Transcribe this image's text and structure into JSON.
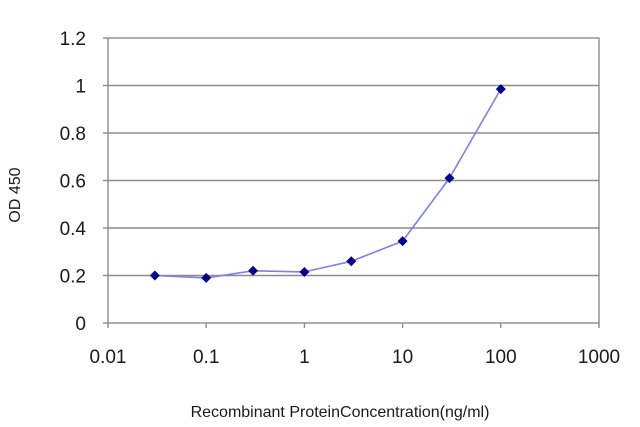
{
  "chart_data": {
    "type": "line",
    "title": "",
    "xlabel": "Recombinant ProteinConcentration(ng/ml)",
    "ylabel": "OD 450",
    "x_scale": "log",
    "xlim": [
      0.01,
      1000
    ],
    "ylim": [
      0,
      1.2
    ],
    "x_ticks": [
      0.01,
      0.1,
      1,
      10,
      100,
      1000
    ],
    "x_tick_labels": [
      "0.01",
      "0.1",
      "1",
      "10",
      "100",
      "1000"
    ],
    "y_ticks": [
      0,
      0.2,
      0.4,
      0.6,
      0.8,
      1,
      1.2
    ],
    "y_tick_labels": [
      "0",
      "0.2",
      "0.4",
      "0.6",
      "0.8",
      "1",
      "1.2"
    ],
    "grid": "horizontal",
    "legend": "none",
    "series": [
      {
        "x": [
          0.03,
          0.1,
          0.3,
          1,
          3,
          10,
          30,
          100
        ],
        "y": [
          0.2,
          0.19,
          0.22,
          0.215,
          0.26,
          0.345,
          0.61,
          0.985
        ],
        "line_color": "#8080e0",
        "marker_color": "#00008b",
        "marker": "diamond"
      }
    ]
  }
}
